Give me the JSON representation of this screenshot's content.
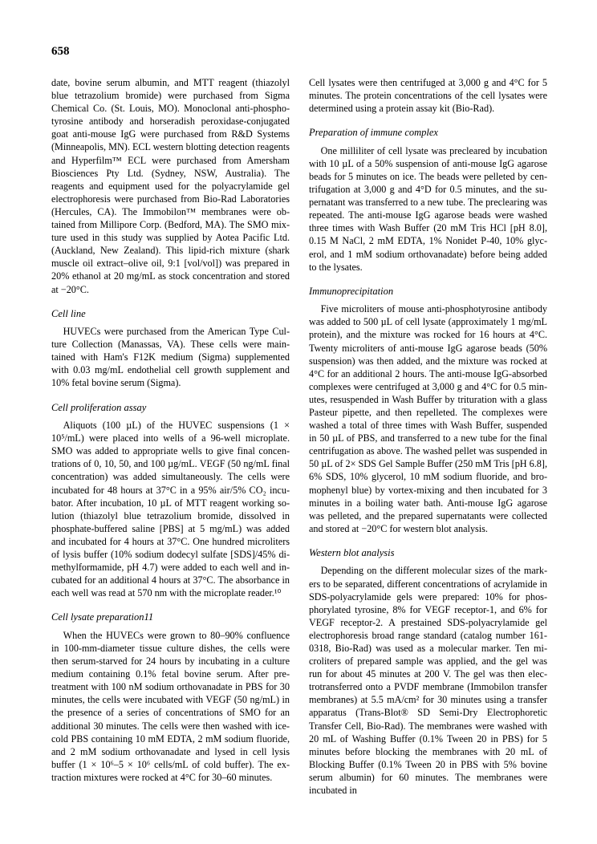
{
  "pageNumber": "658",
  "sections": [
    {
      "head": null,
      "paras": [
        "date, bovine serum albumin, and MTT reagent (thiazolyl blue tetrazolium bromide) were purchased from Sigma Chemical Co. (St. Louis, MO). Monoclonal anti-phospho­tyrosine antibody and horseradish peroxidase-conjugated goat anti-mouse IgG were purchased from R&D Systems (Minneapolis, MN). ECL western blotting detection reagents and Hyperfilm™ ECL were purchased from Amer­sham Biosciences Pty Ltd. (Sydney, NSW, Australia). The reagents and equipment used for the polyacrylamide gel electrophoresis were purchased from Bio-Rad Laboratories (Hercules, CA). The Immobilon™ membranes were ob­tained from Millipore Corp. (Bedford, MA). The SMO mix­ture used in this study was supplied by Aotea Pacific Ltd. (Auckland, New Zealand). This lipid-rich mixture (shark muscle oil extract–olive oil, 9:1 [vol/vol]) was prepared in 20% ethanol at 20 mg/mL as stock concentration and stored at −20°C."
      ],
      "firstNoIndent": true
    },
    {
      "head": "Cell line",
      "paras": [
        "HUVECs were purchased from the American Type Cul­ture Collection (Manassas, VA). These cells were main­tained with Ham's F12K medium (Sigma) supplemented with 0.03 mg/mL endothelial cell growth supplement and 10% fetal bovine serum (Sigma)."
      ]
    },
    {
      "head": "Cell proliferation assay",
      "paras": [
        "Aliquots (100 µL) of the HUVEC suspensions (1 × 10⁵/mL) were placed into wells of a 96-well microplate. SMO was added to appropriate wells to give final concen­trations of 0, 10, 50, and 100 µg/mL. VEGF (50 ng/mL fi­nal concentration) was added simultaneously. The cells were incubated for 48 hours at 37°C in a 95% air/5% CO₂ incu­bator. After incubation, 10 µL of MTT reagent working so­lution (thiazolyl blue tetrazolium bromide, dissolved in phosphate-buffered saline [PBS] at 5 mg/mL) was added and incubated for 4 hours at 37°C. One hundred microliters of lysis buffer (10% sodium dodecyl sulfate [SDS]/45% di­methylformamide, pH 4.7) were added to each well and in­cubated for an additional 4 hours at 37°C. The absorbance in each well was read at 570 nm with the microplate reader.¹⁰"
      ]
    },
    {
      "head": "Cell lysate preparation11",
      "paras": [
        "When the HUVECs were grown to 80–90% confluence in 100-mm-diameter tissue culture dishes, the cells were then serum-starved for 24 hours by incubating in a culture medium containing 0.1% fetal bovine serum. After pre­treatment with 100 nM sodium orthovanadate in PBS for 30 minutes, the cells were incubated with VEGF (50 ng/mL) in the presence of a series of concentrations of SMO for an additional 30 minutes. The cells were then washed with ice-cold PBS containing 10 mM EDTA, 2 mM sodium fluoride, and 2 mM sodium orthovanadate and lysed in cell lysis buffer (1 × 10⁶–5 × 10⁶ cells/mL of cold buffer). The ex­traction mixtures were rocked at 4°C for 30–60 minutes.",
        "Cell lysates were then centrifuged at 3,000 g and 4°C for 5 minutes. The protein concentrations of the cell lysates were determined using a protein assay kit (Bio-Rad)."
      ],
      "lastNoIndent": true
    },
    {
      "head": "Preparation of immune complex",
      "paras": [
        "One milliliter of cell lysate was precleared by incubation with 10 µL of a 50% suspension of anti-mouse IgG agarose beads for 5 minutes on ice. The beads were pelleted by cen­trifugation at 3,000 g and 4°D for 0.5 minutes, and the su­pernatant was transferred to a new tube. The preclearing was repeated. The anti-mouse IgG agarose beads were washed three times with Wash Buffer (20 mM Tris HCl [pH 8.0], 0.15 M NaCl, 2 mM EDTA, 1% Nonidet P-40, 10% glyc­erol, and 1 mM sodium orthovanadate) before being added to the lysates."
      ]
    },
    {
      "head": "Immunoprecipitation",
      "paras": [
        "Five microliters of mouse anti-phosphotyrosine antibody was added to 500 µL of cell lysate (approximately 1 mg/mL protein), and the mixture was rocked for 16 hours at 4°C. Twenty microliters of anti-mouse IgG agarose beads (50% suspension) was then added, and the mixture was rocked at 4°C for an additional 2 hours. The anti-mouse IgG-absorbed complexes were centrifuged at 3,000 g and 4°C for 0.5 min­utes, resuspended in Wash Buffer by trituration with a glass Pasteur pipette, and then repelleted. The complexes were washed a total of three times with Wash Buffer, suspended in 50 µL of PBS, and transferred to a new tube for the final centrifugation as above. The washed pellet was suspended in 50 µL of 2× SDS Gel Sample Buffer (250 mM Tris [pH 6.8], 6% SDS, 10% glycerol, 10 mM sodium fluoride, and bro­mophenyl blue) by vortex-mixing and then incubated for 3 minutes in a boiling water bath. Anti-mouse IgG agarose was pelleted, and the prepared supernatants were collected and stored at −20°C for western blot analysis."
      ]
    },
    {
      "head": "Western blot analysis",
      "paras": [
        "Depending on the different molecular sizes of the mark­ers to be separated, different concentrations of acrylamide in SDS-polyacrylamide gels were prepared: 10% for phos­phorylated tyrosine, 8% for VEGF receptor-1, and 6% for VEGF receptor-2. A prestained SDS-polyacrylamide gel electrophoresis broad range standard (catalog number 161-0318, Bio-Rad) was used as a molecular marker. Ten mi­croliters of prepared sample was applied, and the gel was run for about 45 minutes at 200 V. The gel was then elec­trotransferred onto a PVDF membrane (Immobilon transfer membranes) at 5.5 mA/cm² for 30 minutes using a transfer apparatus (Trans-Blot® SD Semi-Dry Electrophoretic Trans­fer Cell, Bio-Rad). The membranes were washed with 20 mL of Washing Buffer (0.1% Tween 20 in PBS) for 5 min­utes before blocking the membranes with 20 mL of Block­ing Buffer (0.1% Tween 20 in PBS with 5% bovine serum albumin) for 60 minutes. The membranes were incubated in"
      ]
    }
  ]
}
